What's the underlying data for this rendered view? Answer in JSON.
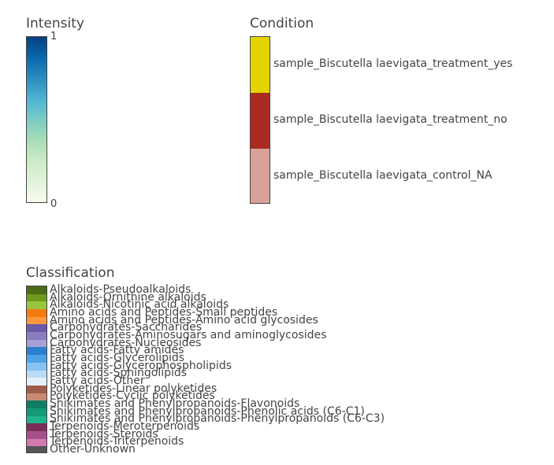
{
  "chart_data": [
    {
      "type": "heatmap-legend",
      "title": "Intensity",
      "range": [
        0,
        1
      ],
      "tick_labels": [
        "1",
        "0"
      ],
      "colorscale": [
        "#f7fcf0",
        "#e0f3db",
        "#ccebc5",
        "#a8ddb5",
        "#7bccc4",
        "#4eb3d3",
        "#2b8cbe",
        "#0868ac",
        "#084081"
      ]
    },
    {
      "type": "categorical-legend",
      "title": "Condition",
      "items": [
        {
          "label": "sample_Biscutella laevigata_treatment_yes",
          "color": "#e3d400"
        },
        {
          "label": "sample_Biscutella laevigata_treatment_no",
          "color": "#a92b22"
        },
        {
          "label": "sample_Biscutella laevigata_control_NA",
          "color": "#d9a198"
        }
      ]
    },
    {
      "type": "categorical-legend",
      "title": "Classification",
      "items": [
        {
          "label": "Alkaloids-Pseudoalkaloids",
          "color": "#4e6b17"
        },
        {
          "label": "Alkaloids-Ornithine alkaloids",
          "color": "#6e9a1e"
        },
        {
          "label": "Alkaloids-Nicotinic acid alkaloids",
          "color": "#9ac53a"
        },
        {
          "label": "Amino acids and Peptides-Small peptides",
          "color": "#f57a12"
        },
        {
          "label": "Amino acids and Peptides-Amino acid glycosides",
          "color": "#fb9a3c"
        },
        {
          "label": "Carbohydrates-Saccharides",
          "color": "#6a5aa8"
        },
        {
          "label": "Carbohydrates-Aminosugars and aminoglycosides",
          "color": "#8a7cc0"
        },
        {
          "label": "Carbohydrates-Nucleosides",
          "color": "#a7a0d4"
        },
        {
          "label": "Fatty acids-Fatty amides",
          "color": "#2a7fd0"
        },
        {
          "label": "Fatty acids-Glycerolipids",
          "color": "#4ea3e6"
        },
        {
          "label": "Fatty acids-Glycerophospholipids",
          "color": "#86c3f2"
        },
        {
          "label": "Fatty acids-Sphingolipids",
          "color": "#b9dcf7"
        },
        {
          "label": "Fatty acids-Other",
          "color": "#e4f1fb"
        },
        {
          "label": "Polyketides-Linear polyketides",
          "color": "#9c5e4a"
        },
        {
          "label": "Polyketides-Cyclic polyketides",
          "color": "#c98a72"
        },
        {
          "label": "Shikimates and Phenylpropanoids-Flavonoids",
          "color": "#0f7d62"
        },
        {
          "label": "Shikimates and Phenylpropanoids-Phenolic acids (C6-C1)",
          "color": "#149a76"
        },
        {
          "label": "Shikimates and Phenylpropanoids-Phenylpropanoids (C6-C3)",
          "color": "#1fb58a"
        },
        {
          "label": "Terpenoids-Meroterpenoids",
          "color": "#7c2e5a"
        },
        {
          "label": "Terpenoids-Steroids",
          "color": "#a8508a"
        },
        {
          "label": "Terpenoids-Triterpenoids",
          "color": "#d47aae"
        },
        {
          "label": "Other-Unknown",
          "color": "#555555"
        }
      ]
    }
  ]
}
